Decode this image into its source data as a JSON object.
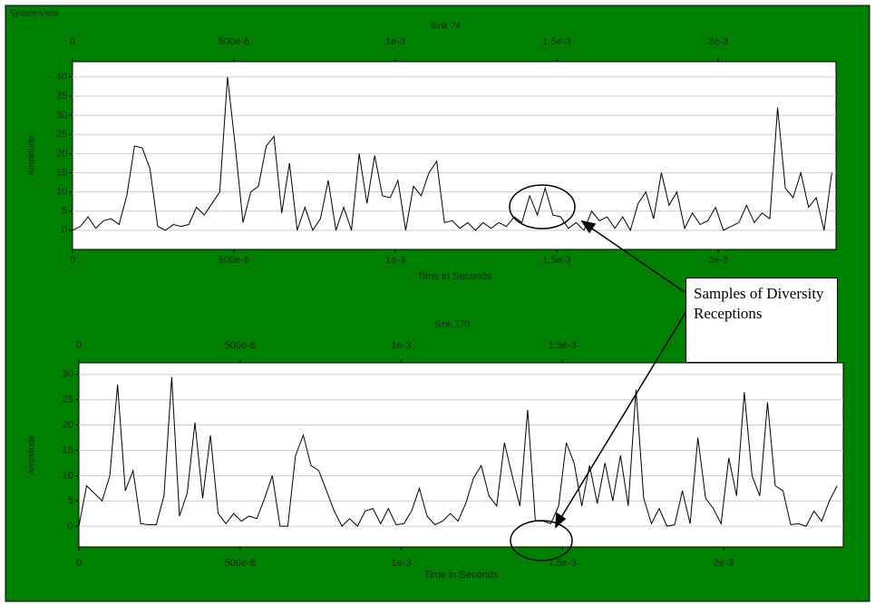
{
  "window_title": "SystemView",
  "annotation": "Samples of Diversity Receptions",
  "chart_data": [
    {
      "type": "line",
      "title": "Sink 74",
      "x_label": "Time in Seconds",
      "y_label": "Amplitude",
      "color": "#000000",
      "grid": true,
      "xlim": [
        0,
        0.002365
      ],
      "ylim": [
        -5,
        44
      ],
      "xticks": [
        0,
        {
          "value": 0.0005,
          "label": "500e-6"
        },
        {
          "value": 0.001,
          "label": "1e-3"
        },
        {
          "value": 0.0015,
          "label": "1.5e-3"
        },
        {
          "value": 0.002,
          "label": "2e-3"
        }
      ],
      "yticks": [
        0,
        5,
        10,
        15,
        20,
        25,
        30,
        35,
        40
      ],
      "x": [
        0,
        2.4e-05,
        4.8e-05,
        7.2e-05,
        9.6e-05,
        0.00012,
        0.000144,
        0.000168,
        0.000192,
        0.000216,
        0.00024,
        0.000264,
        0.000288,
        0.000312,
        0.000336,
        0.00036,
        0.000384,
        0.000408,
        0.000432,
        0.000456,
        0.00048,
        0.000504,
        0.000528,
        0.000552,
        0.000576,
        0.0006,
        0.000624,
        0.000648,
        0.000672,
        0.000696,
        0.00072,
        0.000744,
        0.000768,
        0.000792,
        0.000816,
        0.00084,
        0.000864,
        0.000888,
        0.000912,
        0.000936,
        0.00096,
        0.000984,
        0.001008,
        0.001032,
        0.001056,
        0.00108,
        0.001104,
        0.001128,
        0.001152,
        0.001176,
        0.0012,
        0.001224,
        0.001248,
        0.001272,
        0.001296,
        0.00132,
        0.001344,
        0.001368,
        0.001392,
        0.001416,
        0.00144,
        0.001464,
        0.001488,
        0.001512,
        0.001536,
        0.00156,
        0.001584,
        0.001608,
        0.001632,
        0.001656,
        0.00168,
        0.001704,
        0.001728,
        0.001752,
        0.001776,
        0.0018,
        0.001824,
        0.001848,
        0.001872,
        0.001896,
        0.00192,
        0.001944,
        0.001968,
        0.001992,
        0.002016,
        0.00204,
        0.002064,
        0.002088,
        0.002112,
        0.002136,
        0.00216,
        0.002184,
        0.002208,
        0.002232,
        0.002256,
        0.00228,
        0.002304,
        0.002328,
        0.002352
      ],
      "values": [
        0,
        1,
        3.5,
        0.5,
        2.5,
        3,
        1.5,
        9,
        22,
        21.5,
        16,
        1,
        0,
        1.5,
        1,
        1.5,
        6,
        4,
        7,
        10,
        40,
        22,
        2,
        10,
        11.5,
        22,
        24.5,
        4.5,
        17.5,
        0,
        6,
        0,
        3,
        13,
        0,
        6,
        0,
        20,
        7,
        19.5,
        9,
        8.5,
        13,
        0,
        11.5,
        9,
        15,
        18,
        2,
        2.5,
        0.5,
        2,
        0,
        2,
        0.5,
        2,
        1,
        3.5,
        2,
        9,
        4,
        11,
        4,
        3.5,
        0.5,
        2,
        0,
        5,
        2.5,
        3.5,
        0.5,
        3.5,
        0,
        7,
        10,
        3,
        15,
        6.5,
        10,
        0.5,
        4.5,
        1.5,
        2.5,
        6,
        0,
        1,
        2,
        6.5,
        2,
        4.5,
        3,
        32,
        11,
        8.5,
        15,
        6,
        8.5,
        0,
        15
      ]
    },
    {
      "type": "line",
      "title": "Sink 170",
      "x_label": "Time in Seconds",
      "y_label": "Amplitude",
      "color": "#000000",
      "grid": true,
      "xlim": [
        0,
        0.002371
      ],
      "ylim": [
        -4.1,
        32.3
      ],
      "xticks": [
        0,
        {
          "value": 0.0005,
          "label": "500e-6"
        },
        {
          "value": 0.001,
          "label": "1e-3"
        },
        {
          "value": 0.0015,
          "label": "1.5e-3"
        },
        {
          "value": 0.002,
          "label": "2e-3"
        }
      ],
      "yticks": [
        0,
        5,
        10,
        15,
        20,
        25,
        30
      ],
      "x": [
        0,
        2.4e-05,
        4.8e-05,
        7.2e-05,
        9.6e-05,
        0.00012,
        0.000144,
        0.000168,
        0.000192,
        0.000216,
        0.00024,
        0.000264,
        0.000288,
        0.000312,
        0.000336,
        0.00036,
        0.000384,
        0.000408,
        0.000432,
        0.000456,
        0.00048,
        0.000504,
        0.000528,
        0.000552,
        0.000576,
        0.0006,
        0.000624,
        0.000648,
        0.000672,
        0.000696,
        0.00072,
        0.000744,
        0.000768,
        0.000792,
        0.000816,
        0.00084,
        0.000864,
        0.000888,
        0.000912,
        0.000936,
        0.00096,
        0.000984,
        0.001008,
        0.001032,
        0.001056,
        0.00108,
        0.001104,
        0.001128,
        0.001152,
        0.001176,
        0.0012,
        0.001224,
        0.001248,
        0.001272,
        0.001296,
        0.00132,
        0.001344,
        0.001368,
        0.001392,
        0.001416,
        0.00144,
        0.001464,
        0.001488,
        0.001512,
        0.001536,
        0.00156,
        0.001584,
        0.001608,
        0.001632,
        0.001656,
        0.00168,
        0.001704,
        0.001728,
        0.001752,
        0.001776,
        0.0018,
        0.001824,
        0.001848,
        0.001872,
        0.001896,
        0.00192,
        0.001944,
        0.001968,
        0.001992,
        0.002016,
        0.00204,
        0.002064,
        0.002088,
        0.002112,
        0.002136,
        0.00216,
        0.002184,
        0.002208,
        0.002232,
        0.002256,
        0.00228,
        0.002304,
        0.002328,
        0.002352
      ],
      "values": [
        0,
        8,
        6.5,
        5,
        10,
        28,
        7,
        11,
        0.5,
        0.3,
        0.3,
        6,
        29.5,
        2,
        6.5,
        20.5,
        5.5,
        18,
        2.5,
        0.5,
        2.5,
        1,
        2,
        1.5,
        5.5,
        10,
        0,
        0,
        14,
        18,
        12,
        11,
        7,
        3,
        0,
        1.5,
        0,
        3,
        3.5,
        0.5,
        3.5,
        0.3,
        0.5,
        3,
        7.5,
        2,
        0.3,
        1,
        2.5,
        1,
        4.5,
        9.5,
        12,
        6,
        4,
        16.5,
        10,
        4,
        23,
        1,
        1,
        0.5,
        4,
        16.5,
        12.5,
        4,
        12,
        4.5,
        12.5,
        5,
        14,
        4,
        27,
        5.5,
        0.5,
        3.5,
        0,
        0.3,
        7,
        0.5,
        17.5,
        5.5,
        3.5,
        0.5,
        13.5,
        6,
        26.5,
        10,
        6,
        24.5,
        8,
        7,
        0.3,
        0.5,
        0,
        3,
        1,
        5,
        8
      ]
    }
  ]
}
